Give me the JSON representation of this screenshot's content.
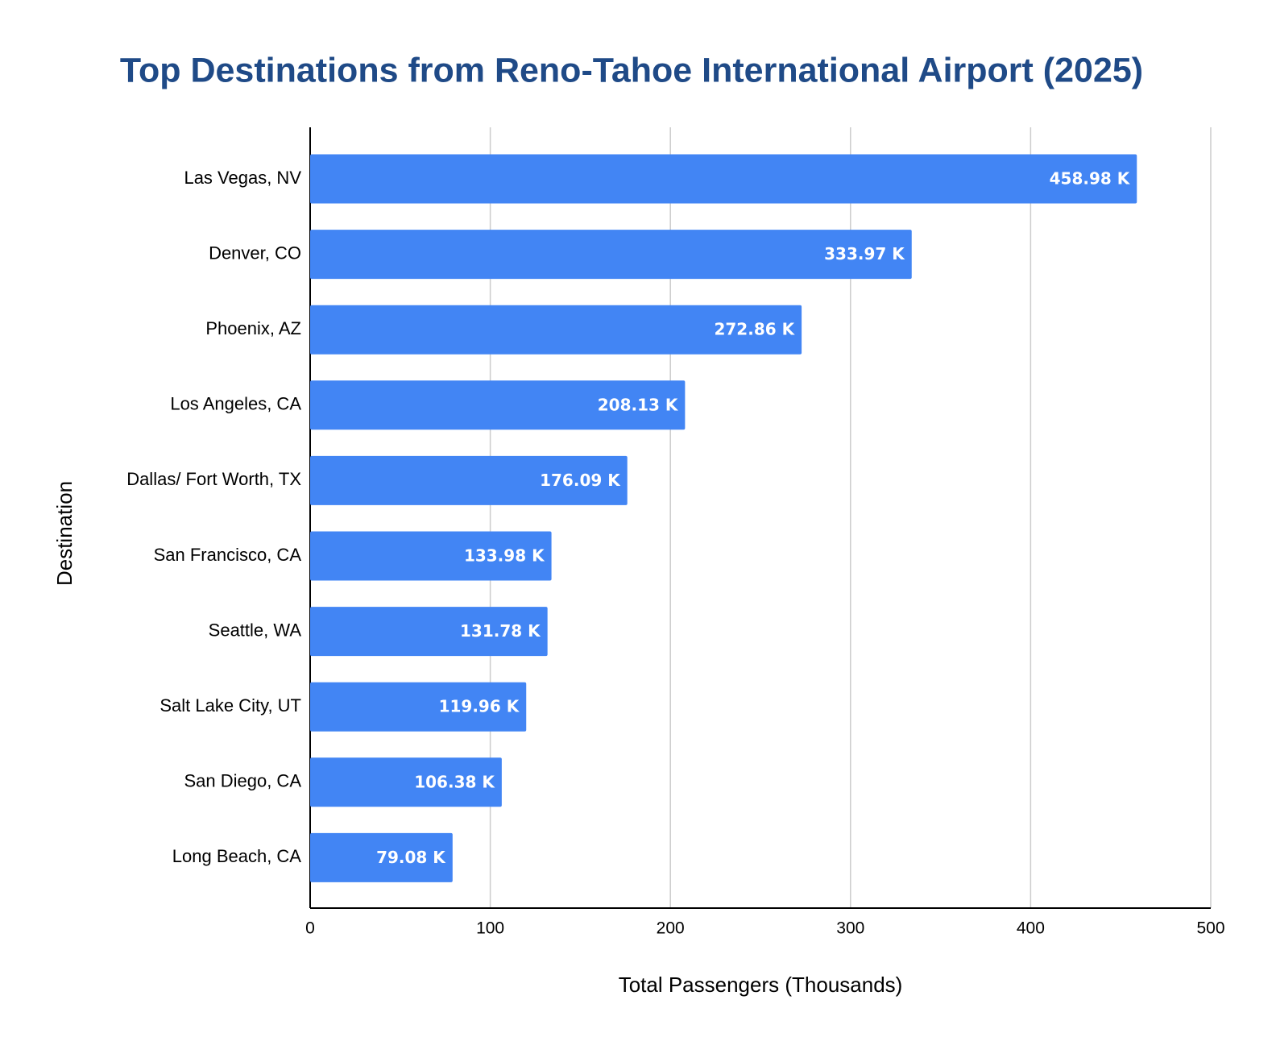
{
  "chart_data": {
    "type": "bar",
    "orientation": "horizontal",
    "title": "Top Destinations from Reno-Tahoe International Airport (2025)",
    "x_label": "Total Passengers (Thousands)",
    "y_label": "Destination",
    "categories": [
      "Las Vegas, NV",
      "Denver, CO",
      "Phoenix, AZ",
      "Los Angeles, CA",
      "Dallas/ Fort Worth, TX",
      "San Francisco, CA",
      "Seattle, WA",
      "Salt Lake City, UT",
      "San Diego, CA",
      "Long Beach, CA"
    ],
    "values": [
      458.98,
      333.97,
      272.86,
      208.13,
      176.09,
      133.98,
      131.78,
      119.96,
      106.38,
      79.08
    ],
    "value_labels": [
      "458.98 K",
      "333.97 K",
      "272.86 K",
      "208.13 K",
      "176.09 K",
      "133.98 K",
      "131.78 K",
      "119.96 K",
      "106.38 K",
      "79.08 K"
    ],
    "color": "#4285f4",
    "xlim": [
      0,
      500
    ],
    "xticks": [
      0,
      100,
      200,
      300,
      400,
      500
    ],
    "grid": true
  }
}
